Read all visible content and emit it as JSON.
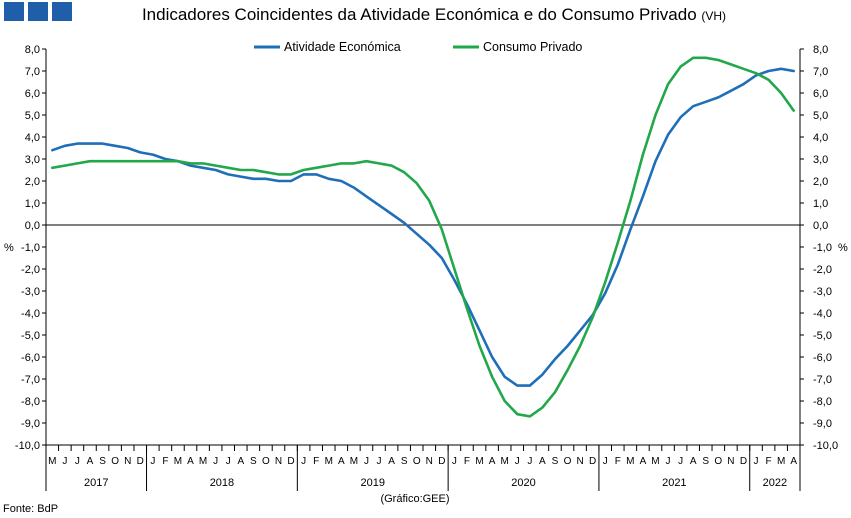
{
  "logo_color": "#1f5ea8",
  "title": "Indicadores Coincidentes da Atividade Económica e do Consumo Privado",
  "title_unit": "(VH)",
  "source": "Fonte: BdP",
  "credit": "(Gráfico:GEE)",
  "y_unit_left": "%",
  "y_unit_right": "%",
  "chart_data": {
    "type": "line",
    "ylim": [
      -10,
      8
    ],
    "yticks": [
      "8,0",
      "7,0",
      "6,0",
      "5,0",
      "4,0",
      "3,0",
      "2,0",
      "1,0",
      "0,0",
      "-1,0",
      "-2,0",
      "-3,0",
      "-4,0",
      "-5,0",
      "-6,0",
      "-7,0",
      "-8,0",
      "-9,0",
      "-10,0"
    ],
    "grid": false,
    "legend_position": "top-center",
    "x": [
      "2017-05",
      "2017-06",
      "2017-07",
      "2017-08",
      "2017-09",
      "2017-10",
      "2017-11",
      "2017-12",
      "2018-01",
      "2018-02",
      "2018-03",
      "2018-04",
      "2018-05",
      "2018-06",
      "2018-07",
      "2018-08",
      "2018-09",
      "2018-10",
      "2018-11",
      "2018-12",
      "2019-01",
      "2019-02",
      "2019-03",
      "2019-04",
      "2019-05",
      "2019-06",
      "2019-07",
      "2019-08",
      "2019-09",
      "2019-10",
      "2019-11",
      "2019-12",
      "2020-01",
      "2020-02",
      "2020-03",
      "2020-04",
      "2020-05",
      "2020-06",
      "2020-07",
      "2020-08",
      "2020-09",
      "2020-10",
      "2020-11",
      "2020-12",
      "2021-01",
      "2021-02",
      "2021-03",
      "2021-04",
      "2021-05",
      "2021-06",
      "2021-07",
      "2021-08",
      "2021-09",
      "2021-10",
      "2021-11",
      "2021-12",
      "2022-01",
      "2022-02",
      "2022-03",
      "2022-04"
    ],
    "month_labels": [
      "M",
      "J",
      "J",
      "A",
      "S",
      "O",
      "N",
      "D",
      "J",
      "F",
      "M",
      "A",
      "M",
      "J",
      "J",
      "A",
      "S",
      "O",
      "N",
      "D",
      "J",
      "F",
      "M",
      "A",
      "M",
      "J",
      "J",
      "A",
      "S",
      "O",
      "N",
      "D",
      "J",
      "F",
      "M",
      "A",
      "M",
      "J",
      "J",
      "A",
      "S",
      "O",
      "N",
      "D",
      "J",
      "F",
      "M",
      "A",
      "M",
      "J",
      "J",
      "A",
      "S",
      "O",
      "N",
      "D",
      "J",
      "F",
      "M",
      "A"
    ],
    "years": [
      {
        "label": "2017",
        "start": 0,
        "end": 7
      },
      {
        "label": "2018",
        "start": 8,
        "end": 19
      },
      {
        "label": "2019",
        "start": 20,
        "end": 31
      },
      {
        "label": "2020",
        "start": 32,
        "end": 43
      },
      {
        "label": "2021",
        "start": 44,
        "end": 55
      },
      {
        "label": "2022",
        "start": 56,
        "end": 59
      }
    ],
    "series": [
      {
        "name": "Atividade Económica",
        "color": "#1f6fb8",
        "values": [
          3.4,
          3.6,
          3.7,
          3.7,
          3.7,
          3.6,
          3.5,
          3.3,
          3.2,
          3.0,
          2.9,
          2.7,
          2.6,
          2.5,
          2.3,
          2.2,
          2.1,
          2.1,
          2.0,
          2.0,
          2.3,
          2.3,
          2.1,
          2.0,
          1.7,
          1.3,
          0.9,
          0.5,
          0.1,
          -0.4,
          -0.9,
          -1.5,
          -2.5,
          -3.6,
          -4.8,
          -6.0,
          -6.9,
          -7.3,
          -7.3,
          -6.8,
          -6.1,
          -5.5,
          -4.8,
          -4.1,
          -3.1,
          -1.8,
          -0.2,
          1.3,
          2.9,
          4.1,
          4.9,
          5.4,
          5.6,
          5.8,
          6.1,
          6.4,
          6.8,
          7.0,
          7.1,
          7.0
        ]
      },
      {
        "name": "Consumo Privado",
        "color": "#22a84a",
        "values": [
          2.6,
          2.7,
          2.8,
          2.9,
          2.9,
          2.9,
          2.9,
          2.9,
          2.9,
          2.9,
          2.9,
          2.8,
          2.8,
          2.7,
          2.6,
          2.5,
          2.5,
          2.4,
          2.3,
          2.3,
          2.5,
          2.6,
          2.7,
          2.8,
          2.8,
          2.9,
          2.8,
          2.7,
          2.4,
          1.9,
          1.1,
          -0.2,
          -2.0,
          -3.8,
          -5.5,
          -6.9,
          -8.0,
          -8.6,
          -8.7,
          -8.3,
          -7.6,
          -6.6,
          -5.5,
          -4.2,
          -2.6,
          -0.8,
          1.1,
          3.2,
          5.0,
          6.4,
          7.2,
          7.6,
          7.6,
          7.5,
          7.3,
          7.1,
          6.9,
          6.6,
          6.0,
          5.2
        ]
      }
    ]
  }
}
